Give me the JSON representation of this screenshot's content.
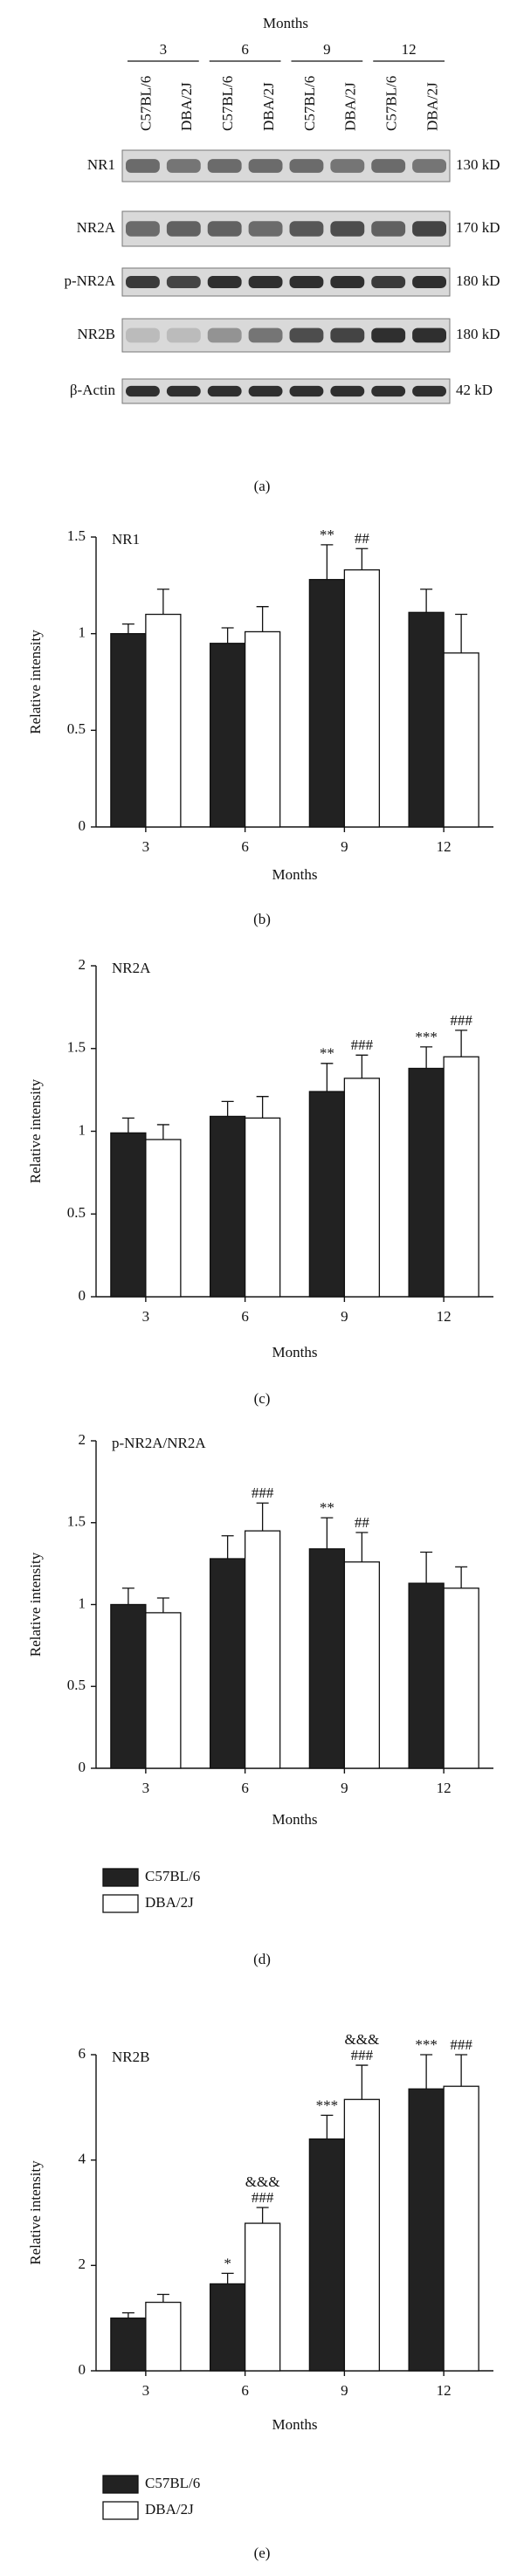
{
  "blot": {
    "title": "Months",
    "caption": "(a)",
    "groups": [
      "3",
      "6",
      "9",
      "12"
    ],
    "lanes": [
      "C57BL/6",
      "DBA/2J",
      "C57BL/6",
      "DBA/2J",
      "C57BL/6",
      "DBA/2J",
      "C57BL/6",
      "DBA/2J"
    ],
    "rows": [
      {
        "label": "NR1",
        "size": "130 kD"
      },
      {
        "label": "NR2A",
        "size": "170 kD"
      },
      {
        "label": "p-NR2A",
        "size": "180 kD"
      },
      {
        "label": "NR2B",
        "size": "180 kD"
      },
      {
        "label": "β-Actin",
        "size": "42 kD"
      }
    ]
  },
  "chart_data": [
    {
      "type": "bar",
      "title": "NR1",
      "caption": "(b)",
      "xlabel": "Months",
      "ylabel": "Relative intensity",
      "categories": [
        "3",
        "6",
        "9",
        "12"
      ],
      "ylim": [
        0,
        1.5
      ],
      "yticks": [
        0,
        0.5,
        1,
        1.5
      ],
      "legend": false,
      "series": [
        {
          "name": "C57BL/6",
          "color": "#222222",
          "values": [
            1.0,
            0.95,
            1.28,
            1.11
          ],
          "errors": [
            0.05,
            0.08,
            0.18,
            0.12
          ],
          "annotations": [
            null,
            null,
            [
              "**"
            ],
            null
          ]
        },
        {
          "name": "DBA/2J",
          "color": "#ffffff",
          "values": [
            1.1,
            1.01,
            1.33,
            0.9
          ],
          "errors": [
            0.13,
            0.13,
            0.11,
            0.2
          ],
          "annotations": [
            null,
            null,
            [
              "##"
            ],
            null
          ]
        }
      ]
    },
    {
      "type": "bar",
      "title": "NR2A",
      "caption": "(c)",
      "xlabel": "Months",
      "ylabel": "Relative intensity",
      "categories": [
        "3",
        "6",
        "9",
        "12"
      ],
      "ylim": [
        0,
        2
      ],
      "yticks": [
        0,
        0.5,
        1,
        1.5,
        2
      ],
      "legend": false,
      "series": [
        {
          "name": "C57BL/6",
          "color": "#222222",
          "values": [
            0.99,
            1.09,
            1.24,
            1.38
          ],
          "errors": [
            0.09,
            0.09,
            0.17,
            0.13
          ],
          "annotations": [
            null,
            null,
            [
              "**"
            ],
            [
              "***"
            ]
          ]
        },
        {
          "name": "DBA/2J",
          "color": "#ffffff",
          "values": [
            0.95,
            1.08,
            1.32,
            1.45
          ],
          "errors": [
            0.09,
            0.13,
            0.14,
            0.16
          ],
          "annotations": [
            null,
            null,
            [
              "###"
            ],
            [
              "###"
            ]
          ]
        }
      ]
    },
    {
      "type": "bar",
      "title": "p-NR2A/NR2A",
      "caption": "(d)",
      "xlabel": "Months",
      "ylabel": "Relative intensity",
      "categories": [
        "3",
        "6",
        "9",
        "12"
      ],
      "ylim": [
        0,
        2
      ],
      "yticks": [
        0,
        0.5,
        1,
        1.5,
        2
      ],
      "legend": true,
      "series": [
        {
          "name": "C57BL/6",
          "color": "#222222",
          "values": [
            1.0,
            1.28,
            1.34,
            1.13
          ],
          "errors": [
            0.1,
            0.14,
            0.19,
            0.19
          ],
          "annotations": [
            null,
            null,
            [
              "**"
            ],
            null
          ]
        },
        {
          "name": "DBA/2J",
          "color": "#ffffff",
          "values": [
            0.95,
            1.45,
            1.26,
            1.1
          ],
          "errors": [
            0.09,
            0.17,
            0.18,
            0.13
          ],
          "annotations": [
            null,
            [
              "###"
            ],
            [
              "##"
            ],
            null
          ]
        }
      ]
    },
    {
      "type": "bar",
      "title": "NR2B",
      "caption": "(e)",
      "xlabel": "Months",
      "ylabel": "Relative intensity",
      "categories": [
        "3",
        "6",
        "9",
        "12"
      ],
      "ylim": [
        0,
        6
      ],
      "yticks": [
        0,
        2,
        4,
        6
      ],
      "legend": true,
      "series": [
        {
          "name": "C57BL/6",
          "color": "#222222",
          "values": [
            1.0,
            1.65,
            4.4,
            5.35
          ],
          "errors": [
            0.1,
            0.2,
            0.45,
            0.65
          ],
          "annotations": [
            null,
            [
              "*"
            ],
            [
              "***"
            ],
            [
              "***"
            ]
          ]
        },
        {
          "name": "DBA/2J",
          "color": "#ffffff",
          "values": [
            1.3,
            2.8,
            5.15,
            5.4
          ],
          "errors": [
            0.15,
            0.3,
            0.65,
            0.6
          ],
          "annotations": [
            null,
            [
              "&&&",
              "###"
            ],
            [
              "&&&",
              "###"
            ],
            [
              "###"
            ]
          ]
        }
      ]
    }
  ]
}
